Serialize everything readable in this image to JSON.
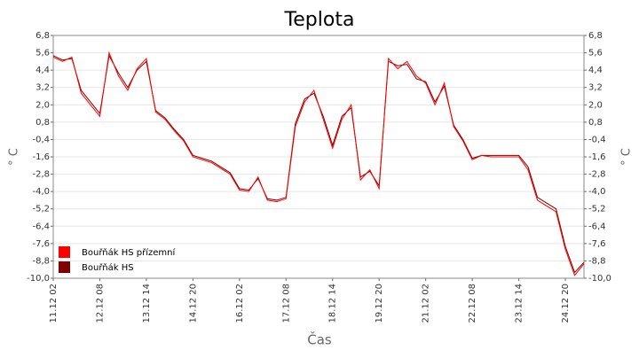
{
  "chart_data": {
    "type": "line",
    "title": "Teplota",
    "xlabel": "Čas",
    "ylabel": "° C",
    "y2label": "° C",
    "x": [
      0,
      6,
      12,
      18,
      24,
      30,
      36,
      42,
      48,
      54,
      60,
      66,
      72,
      78,
      84,
      90,
      96,
      102,
      108,
      114,
      120,
      126,
      132,
      138,
      144,
      150,
      156,
      162,
      168,
      174,
      180,
      186,
      192,
      198,
      204,
      210,
      216,
      222,
      228,
      234,
      240,
      246,
      252,
      258,
      264,
      270,
      276,
      282,
      288,
      294,
      300,
      306,
      312,
      318,
      324,
      330,
      336,
      342
    ],
    "series": [
      {
        "name": "Bouřňák HS přízemní",
        "color": "#ff0000",
        "values": [
          5.3,
          5.0,
          5.3,
          2.8,
          2.0,
          1.2,
          5.6,
          4.0,
          3.0,
          4.5,
          5.2,
          1.5,
          1.0,
          0.2,
          -0.5,
          -1.6,
          -1.8,
          -2.0,
          -2.4,
          -2.8,
          -3.9,
          -4.0,
          -3.0,
          -4.6,
          -4.7,
          -4.5,
          0.5,
          2.2,
          3.0,
          1.0,
          -1.0,
          1.0,
          2.0,
          -3.2,
          -2.5,
          -3.8,
          5.2,
          4.5,
          5.0,
          4.0,
          3.5,
          2.0,
          3.5,
          0.5,
          -0.5,
          -1.8,
          -1.5,
          -1.6,
          -1.6,
          -1.6,
          -1.6,
          -2.5,
          -4.6,
          -5.0,
          -5.4,
          -8.0,
          -9.8,
          -9.0
        ]
      },
      {
        "name": "Bouřňák HS",
        "color": "#800000",
        "values": [
          5.4,
          5.1,
          5.2,
          3.0,
          2.2,
          1.4,
          5.4,
          4.2,
          3.2,
          4.4,
          5.0,
          1.6,
          1.1,
          0.3,
          -0.4,
          -1.5,
          -1.7,
          -1.9,
          -2.3,
          -2.7,
          -3.8,
          -3.9,
          -3.1,
          -4.5,
          -4.6,
          -4.4,
          0.7,
          2.4,
          2.8,
          1.2,
          -0.8,
          1.2,
          1.8,
          -3.0,
          -2.6,
          -3.6,
          5.0,
          4.7,
          4.8,
          3.8,
          3.6,
          2.2,
          3.3,
          0.6,
          -0.4,
          -1.7,
          -1.5,
          -1.5,
          -1.5,
          -1.5,
          -1.5,
          -2.3,
          -4.4,
          -4.8,
          -5.2,
          -7.8,
          -9.6,
          -8.9
        ]
      }
    ],
    "xlim": [
      0,
      342
    ],
    "xticks": [
      {
        "value": 0,
        "label": "11.12 02"
      },
      {
        "value": 30,
        "label": "12.12 08"
      },
      {
        "value": 60,
        "label": "13.12 14"
      },
      {
        "value": 90,
        "label": "14.12 20"
      },
      {
        "value": 120,
        "label": "16.12 02"
      },
      {
        "value": 150,
        "label": "17.12 08"
      },
      {
        "value": 180,
        "label": "18.12 14"
      },
      {
        "value": 210,
        "label": "19.12 20"
      },
      {
        "value": 240,
        "label": "21.12 02"
      },
      {
        "value": 270,
        "label": "22.12 08"
      },
      {
        "value": 300,
        "label": "23.12 14"
      },
      {
        "value": 330,
        "label": "24.12 20"
      }
    ],
    "ylim": [
      -10,
      6.8
    ],
    "yticks": [
      {
        "value": 6.8,
        "label": "6,8"
      },
      {
        "value": 5.6,
        "label": "5,6"
      },
      {
        "value": 4.4,
        "label": "4,4"
      },
      {
        "value": 3.2,
        "label": "3,2"
      },
      {
        "value": 2.0,
        "label": "2,0"
      },
      {
        "value": 0.8,
        "label": "0,8"
      },
      {
        "value": -0.4,
        "label": "-0,4"
      },
      {
        "value": -1.6,
        "label": "-1,6"
      },
      {
        "value": -2.8,
        "label": "-2,8"
      },
      {
        "value": -4.0,
        "label": "-4,0"
      },
      {
        "value": -5.2,
        "label": "-5,2"
      },
      {
        "value": -6.4,
        "label": "-6,4"
      },
      {
        "value": -7.6,
        "label": "-7,6"
      },
      {
        "value": -8.8,
        "label": "-8,8"
      },
      {
        "value": -10.0,
        "label": "-10,0"
      }
    ],
    "y2lim": [
      -10,
      6.8
    ],
    "y2ticks": [
      {
        "value": 6.8,
        "label": "6,8"
      },
      {
        "value": 5.6,
        "label": "5,6"
      },
      {
        "value": 4.4,
        "label": "4,4"
      },
      {
        "value": 3.2,
        "label": "3,2"
      },
      {
        "value": 2.0,
        "label": "2,0"
      },
      {
        "value": 0.8,
        "label": "0,8"
      },
      {
        "value": -0.4,
        "label": "-0,4"
      },
      {
        "value": -1.6,
        "label": "-1,6"
      },
      {
        "value": -2.8,
        "label": "-2,8"
      },
      {
        "value": -4.0,
        "label": "-4,0"
      },
      {
        "value": -5.2,
        "label": "-5,2"
      },
      {
        "value": -6.4,
        "label": "-6,4"
      },
      {
        "value": -7.6,
        "label": "-7,6"
      },
      {
        "value": -8.8,
        "label": "-8,8"
      },
      {
        "value": -10.0,
        "label": "-10,0"
      }
    ],
    "grid": true,
    "legend": "lower left"
  }
}
